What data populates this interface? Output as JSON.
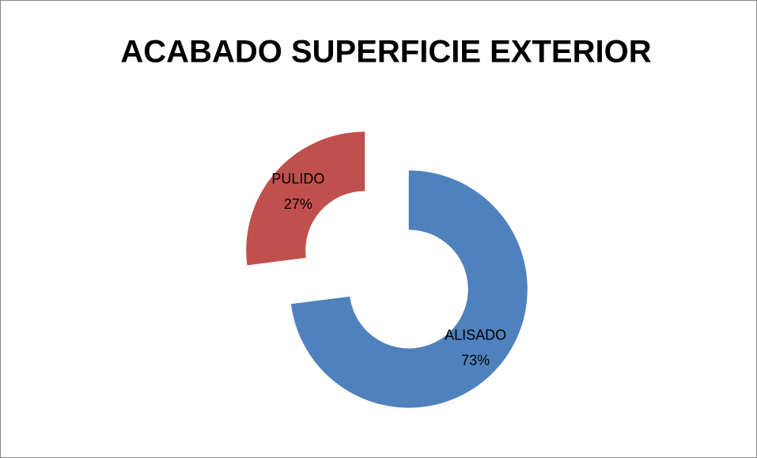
{
  "chart_data": {
    "type": "donut",
    "title": "ACABADO SUPERFICIE EXTERIOR",
    "categories": [
      "ALISADO",
      "PULIDO"
    ],
    "values": [
      73,
      27
    ],
    "value_labels": [
      "73%",
      "27%"
    ],
    "colors": [
      "#4f81bd",
      "#c0504d"
    ]
  }
}
